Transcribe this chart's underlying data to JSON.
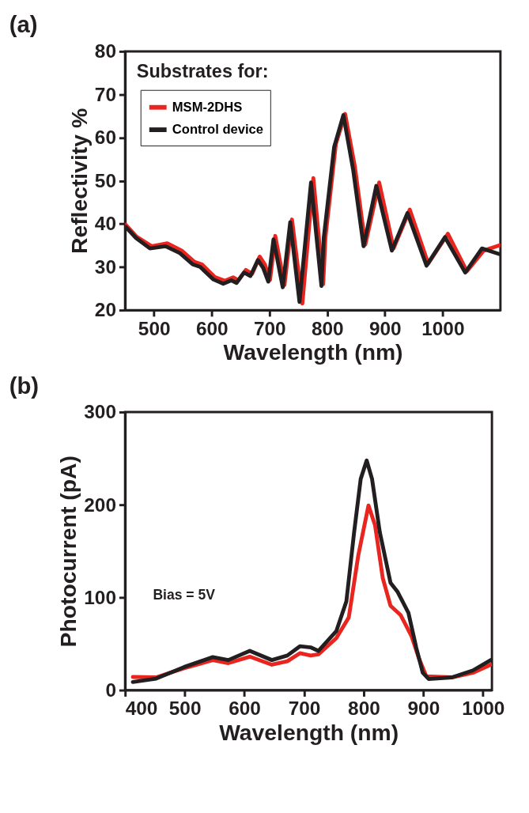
{
  "chart_data": [
    {
      "type": "line",
      "title": "(a)",
      "xlabel": "Wavelength (nm)",
      "ylabel": "Reflectivity %",
      "legend_title": "Substrates for:",
      "legend": "top left",
      "grid": false,
      "marker": "none",
      "line_style": "solid",
      "xlim": [
        450,
        1100
      ],
      "ylim": [
        20,
        80
      ],
      "xticks": [
        500,
        600,
        700,
        800,
        900,
        1000
      ],
      "yticks": [
        20,
        30,
        40,
        50,
        60,
        70,
        80
      ],
      "series": [
        {
          "name": "MSM-2DHS",
          "color": "#e8261f",
          "x": [
            451,
            470,
            496,
            523,
            548,
            570,
            583,
            606,
            623,
            637,
            646,
            659,
            670,
            683,
            692,
            701,
            710,
            726,
            739,
            757,
            776,
            793,
            797,
            815,
            831,
            848,
            866,
            890,
            915,
            943,
            975,
            1009,
            1042,
            1071,
            1098
          ],
          "values": [
            39.8,
            37.0,
            34.8,
            35.5,
            33.8,
            31.2,
            30.6,
            27.6,
            26.8,
            27.6,
            26.9,
            29.3,
            28.4,
            32.4,
            30.6,
            27.0,
            37.2,
            25.8,
            41.0,
            21.5,
            50.6,
            26.0,
            37.0,
            58.5,
            65.5,
            53.2,
            35.2,
            49.6,
            34.3,
            43.3,
            30.8,
            37.7,
            29.0,
            33.8,
            35.0
          ]
        },
        {
          "name": "Control device",
          "color": "#231f20",
          "x": [
            451,
            469,
            493,
            520,
            545,
            567,
            580,
            603,
            620,
            634,
            643,
            656,
            667,
            680,
            689,
            698,
            707,
            723,
            736,
            752,
            772,
            790,
            794,
            812,
            828,
            845,
            863,
            885,
            912,
            939,
            972,
            1004,
            1039,
            1068,
            1098
          ],
          "values": [
            39.3,
            36.7,
            34.3,
            34.8,
            33.2,
            30.6,
            30.0,
            27.1,
            26.1,
            26.9,
            26.3,
            28.7,
            27.9,
            31.6,
            29.8,
            26.6,
            36.4,
            25.3,
            40.4,
            21.9,
            49.6,
            25.6,
            36.7,
            57.8,
            65.2,
            52.5,
            34.8,
            48.8,
            33.8,
            42.5,
            30.3,
            36.9,
            28.7,
            34.3,
            33.0
          ]
        }
      ]
    },
    {
      "type": "line",
      "title": "(b)",
      "xlabel": "Wavelength (nm)",
      "ylabel": "Photocurrent (pA)",
      "legend": "top left",
      "grid": false,
      "marker": "none",
      "line_style": "solid",
      "annotations": [
        "Bias = 5V"
      ],
      "xlim": [
        400,
        1015
      ],
      "ylim": [
        0,
        300
      ],
      "xticks": [
        400,
        500,
        600,
        700,
        800,
        900,
        1000
      ],
      "yticks": [
        0,
        100,
        200,
        300
      ],
      "series": [
        {
          "name": "MSM-2DHS",
          "color": "#e8261f",
          "x": [
            413,
            452,
            499,
            547,
            573,
            609,
            646,
            672,
            693,
            711,
            724,
            754,
            775,
            791,
            808,
            819,
            832,
            845,
            862,
            880,
            893,
            905,
            948,
            983,
            1013
          ],
          "values": [
            14.2,
            13.7,
            23.6,
            32.4,
            29.1,
            36.1,
            27.4,
            31.1,
            39.8,
            37.3,
            38.6,
            56.0,
            78.4,
            145.6,
            199.2,
            178.0,
            120.7,
            90.9,
            80.9,
            58.5,
            33.6,
            14.9,
            13.7,
            18.7,
            27.4
          ]
        },
        {
          "name": "Control device",
          "color": "#231f20",
          "x": [
            413,
            452,
            499,
            547,
            573,
            609,
            646,
            672,
            693,
            711,
            724,
            754,
            771,
            784,
            795,
            805,
            814,
            827,
            845,
            857,
            875,
            888,
            899,
            909,
            948,
            983,
            1013
          ],
          "values": [
            8.7,
            12.4,
            24.9,
            35.6,
            32.4,
            42.3,
            32.4,
            37.3,
            47.3,
            46.1,
            42.3,
            63.5,
            95.8,
            170.5,
            227.8,
            247.7,
            227.8,
            170.5,
            115.8,
            105.8,
            83.4,
            46.1,
            18.7,
            11.9,
            13.7,
            21.2,
            32.4
          ]
        }
      ]
    }
  ]
}
